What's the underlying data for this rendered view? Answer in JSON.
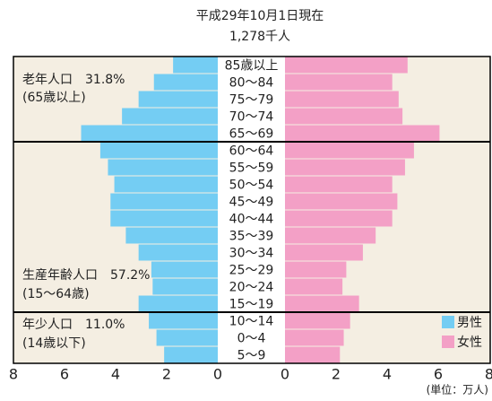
{
  "chart_data": {
    "type": "pyramid",
    "title": "平成29年10月1日現在",
    "subtitle": "1,278千人",
    "categories": [
      "85歳以上",
      "80～84",
      "75～79",
      "70～74",
      "65～69",
      "60～64",
      "55～59",
      "50～54",
      "45～49",
      "40～44",
      "35～39",
      "30～34",
      "25～29",
      "20～24",
      "15～19",
      "10～14",
      "0～4",
      "5～9"
    ],
    "series": [
      {
        "name": "男性",
        "color": "#74cdf3",
        "values": [
          1.75,
          2.5,
          3.1,
          3.75,
          5.35,
          4.6,
          4.3,
          4.05,
          4.2,
          4.2,
          3.6,
          3.1,
          2.6,
          2.55,
          3.1,
          2.7,
          2.4,
          2.1
        ]
      },
      {
        "name": "女性",
        "color": "#f3a0c6",
        "values": [
          4.8,
          4.2,
          4.45,
          4.6,
          6.05,
          5.05,
          4.7,
          4.2,
          4.4,
          4.2,
          3.55,
          3.05,
          2.4,
          2.25,
          2.9,
          2.55,
          2.3,
          2.15
        ]
      }
    ],
    "xlim": [
      0,
      8
    ],
    "xticks": [
      0,
      2,
      4,
      6,
      8
    ],
    "annotations": [
      "老年人口　31.8%",
      "(65歳以上)",
      "生産年齢人口　57.2%",
      "(15～64歳)",
      "年少人口　11.0%",
      "(14歳以下)"
    ],
    "unit": "(単位：万人)"
  }
}
